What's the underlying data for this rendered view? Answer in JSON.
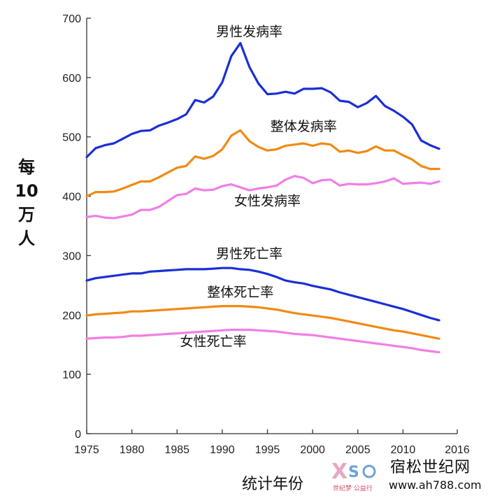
{
  "chart_data": {
    "type": "line",
    "xlabel": "统计年份",
    "ylabel": [
      "每",
      "10",
      "万",
      "人"
    ],
    "xlim": [
      1975,
      2016
    ],
    "ylim": [
      0,
      700
    ],
    "xticks": [
      1975,
      1980,
      1985,
      1990,
      1995,
      2000,
      2005,
      2010,
      2016
    ],
    "yticks": [
      0,
      100,
      200,
      300,
      400,
      500,
      600,
      700
    ],
    "grid": false,
    "series": [
      {
        "name": "男性发病率",
        "color": "#1a2fd6",
        "x": [
          1975,
          1976,
          1977,
          1978,
          1979,
          1980,
          1981,
          1982,
          1983,
          1984,
          1985,
          1986,
          1987,
          1988,
          1989,
          1990,
          1991,
          1992,
          1993,
          1994,
          1995,
          1996,
          1997,
          1998,
          1999,
          2000,
          2001,
          2002,
          2003,
          2004,
          2005,
          2006,
          2007,
          2008,
          2009,
          2010,
          2011,
          2012,
          2013,
          2014
        ],
        "values": [
          466,
          481,
          486,
          489,
          497,
          505,
          510,
          511,
          519,
          524,
          530,
          538,
          562,
          558,
          568,
          592,
          636,
          658,
          618,
          590,
          572,
          573,
          576,
          573,
          581,
          581,
          582,
          575,
          561,
          559,
          550,
          557,
          569,
          552,
          544,
          534,
          521,
          494,
          486,
          480
        ]
      },
      {
        "name": "整体发病率",
        "color": "#f08a12",
        "x": [
          1975,
          1976,
          1977,
          1978,
          1979,
          1980,
          1981,
          1982,
          1983,
          1984,
          1985,
          1986,
          1987,
          1988,
          1989,
          1990,
          1991,
          1992,
          1993,
          1994,
          1995,
          1996,
          1997,
          1998,
          1999,
          2000,
          2001,
          2002,
          2003,
          2004,
          2005,
          2006,
          2007,
          2008,
          2009,
          2010,
          2011,
          2012,
          2013,
          2014
        ],
        "values": [
          400,
          407,
          407,
          408,
          413,
          419,
          425,
          425,
          432,
          440,
          448,
          451,
          467,
          463,
          468,
          479,
          502,
          511,
          493,
          483,
          477,
          479,
          485,
          487,
          489,
          485,
          489,
          487,
          475,
          477,
          473,
          476,
          484,
          477,
          477,
          469,
          462,
          451,
          446,
          446
        ]
      },
      {
        "name": "女性发病率",
        "color": "#f07ee6",
        "x": [
          1975,
          1976,
          1977,
          1978,
          1979,
          1980,
          1981,
          1982,
          1983,
          1984,
          1985,
          1986,
          1987,
          1988,
          1989,
          1990,
          1991,
          1992,
          1993,
          1994,
          1995,
          1996,
          1997,
          1998,
          1999,
          2000,
          2001,
          2002,
          2003,
          2004,
          2005,
          2006,
          2007,
          2008,
          2009,
          2010,
          2011,
          2012,
          2013,
          2014
        ],
        "values": [
          365,
          367,
          364,
          363,
          366,
          369,
          377,
          377,
          382,
          392,
          402,
          404,
          413,
          410,
          411,
          417,
          420,
          415,
          410,
          413,
          415,
          418,
          428,
          434,
          431,
          422,
          427,
          428,
          418,
          421,
          420,
          420,
          422,
          425,
          430,
          421,
          422,
          423,
          421,
          425
        ]
      },
      {
        "name": "男性死亡率",
        "color": "#1a2fd6",
        "x": [
          1975,
          1976,
          1977,
          1978,
          1979,
          1980,
          1981,
          1982,
          1983,
          1984,
          1985,
          1986,
          1987,
          1988,
          1989,
          1990,
          1991,
          1992,
          1993,
          1994,
          1995,
          1996,
          1997,
          1998,
          1999,
          2000,
          2001,
          2002,
          2003,
          2004,
          2005,
          2006,
          2007,
          2008,
          2009,
          2010,
          2011,
          2012,
          2013,
          2014
        ],
        "values": [
          258,
          262,
          264,
          266,
          268,
          270,
          270,
          273,
          274,
          275,
          276,
          277,
          277,
          277,
          278,
          279,
          279,
          277,
          276,
          273,
          269,
          264,
          258,
          255,
          253,
          249,
          246,
          243,
          238,
          234,
          230,
          226,
          222,
          218,
          214,
          210,
          205,
          200,
          195,
          191
        ]
      },
      {
        "name": "整体死亡率",
        "color": "#f08a12",
        "x": [
          1975,
          1976,
          1977,
          1978,
          1979,
          1980,
          1981,
          1982,
          1983,
          1984,
          1985,
          1986,
          1987,
          1988,
          1989,
          1990,
          1991,
          1992,
          1993,
          1994,
          1995,
          1996,
          1997,
          1998,
          1999,
          2000,
          2001,
          2002,
          2003,
          2004,
          2005,
          2006,
          2007,
          2008,
          2009,
          2010,
          2011,
          2012,
          2013,
          2014
        ],
        "values": [
          199,
          201,
          202,
          203,
          204,
          206,
          206,
          207,
          208,
          209,
          210,
          211,
          212,
          213,
          214,
          215,
          215,
          215,
          214,
          213,
          211,
          209,
          206,
          203,
          201,
          199,
          197,
          195,
          192,
          189,
          186,
          183,
          180,
          177,
          174,
          172,
          169,
          166,
          163,
          160
        ]
      },
      {
        "name": "女性死亡率",
        "color": "#f07ee6",
        "x": [
          1975,
          1976,
          1977,
          1978,
          1979,
          1980,
          1981,
          1982,
          1983,
          1984,
          1985,
          1986,
          1987,
          1988,
          1989,
          1990,
          1991,
          1992,
          1993,
          1994,
          1995,
          1996,
          1997,
          1998,
          1999,
          2000,
          2001,
          2002,
          2003,
          2004,
          2005,
          2006,
          2007,
          2008,
          2009,
          2010,
          2011,
          2012,
          2013,
          2014
        ],
        "values": [
          160,
          161,
          162,
          162,
          163,
          165,
          165,
          166,
          167,
          168,
          169,
          170,
          171,
          172,
          173,
          174,
          175,
          175,
          175,
          174,
          173,
          172,
          170,
          168,
          167,
          166,
          164,
          162,
          160,
          158,
          156,
          154,
          152,
          150,
          148,
          146,
          144,
          141,
          139,
          137
        ]
      }
    ],
    "annotations": [
      {
        "text": "男性发病率",
        "x": 1993,
        "y": 670
      },
      {
        "text": "整体发病率",
        "x": 1999,
        "y": 510
      },
      {
        "text": "女性发病率",
        "x": 1995,
        "y": 385
      },
      {
        "text": "男性死亡率",
        "x": 1993,
        "y": 296
      },
      {
        "text": "整体死亡率",
        "x": 1992,
        "y": 231
      },
      {
        "text": "女性死亡率",
        "x": 1989,
        "y": 148
      }
    ]
  },
  "watermark": {
    "brand": "宿松世纪网",
    "url": "www.ah788.com",
    "logo_text": "世纪梦 公益行"
  }
}
